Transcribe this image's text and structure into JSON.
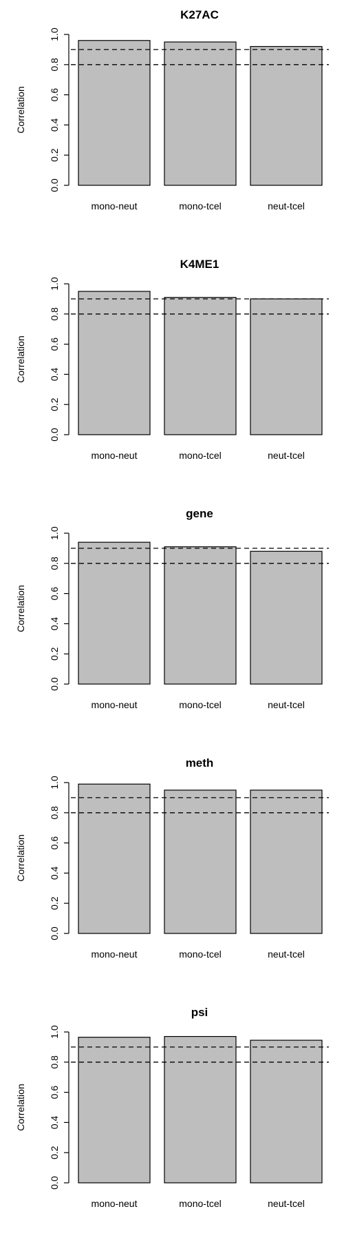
{
  "chart_data": [
    {
      "type": "bar",
      "title": "K27AC",
      "ylabel": "Correlation",
      "categories": [
        "mono-neut",
        "mono-tcel",
        "neut-tcel"
      ],
      "values": [
        0.96,
        0.95,
        0.92
      ],
      "ylim": [
        0,
        1
      ],
      "yticks": [
        "0.0",
        "0.2",
        "0.4",
        "0.6",
        "0.8",
        "1.0"
      ],
      "reference_lines": [
        0.8,
        0.9
      ],
      "bar_color": "#bebebe"
    },
    {
      "type": "bar",
      "title": "K4ME1",
      "ylabel": "Correlation",
      "categories": [
        "mono-neut",
        "mono-tcel",
        "neut-tcel"
      ],
      "values": [
        0.95,
        0.91,
        0.9
      ],
      "ylim": [
        0,
        1
      ],
      "yticks": [
        "0.0",
        "0.2",
        "0.4",
        "0.6",
        "0.8",
        "1.0"
      ],
      "reference_lines": [
        0.8,
        0.9
      ],
      "bar_color": "#bebebe"
    },
    {
      "type": "bar",
      "title": "gene",
      "ylabel": "Correlation",
      "categories": [
        "mono-neut",
        "mono-tcel",
        "neut-tcel"
      ],
      "values": [
        0.94,
        0.91,
        0.88
      ],
      "ylim": [
        0,
        1
      ],
      "yticks": [
        "0.0",
        "0.2",
        "0.4",
        "0.6",
        "0.8",
        "1.0"
      ],
      "reference_lines": [
        0.8,
        0.9
      ],
      "bar_color": "#bebebe"
    },
    {
      "type": "bar",
      "title": "meth",
      "ylabel": "Correlation",
      "categories": [
        "mono-neut",
        "mono-tcel",
        "neut-tcel"
      ],
      "values": [
        0.99,
        0.95,
        0.95
      ],
      "ylim": [
        0,
        1
      ],
      "yticks": [
        "0.0",
        "0.2",
        "0.4",
        "0.6",
        "0.8",
        "1.0"
      ],
      "reference_lines": [
        0.8,
        0.9
      ],
      "bar_color": "#bebebe"
    },
    {
      "type": "bar",
      "title": "psi",
      "ylabel": "Correlation",
      "categories": [
        "mono-neut",
        "mono-tcel",
        "neut-tcel"
      ],
      "values": [
        0.965,
        0.97,
        0.945
      ],
      "ylim": [
        0,
        1
      ],
      "yticks": [
        "0.0",
        "0.2",
        "0.4",
        "0.6",
        "0.8",
        "1.0"
      ],
      "reference_lines": [
        0.8,
        0.9
      ],
      "bar_color": "#bebebe"
    }
  ]
}
